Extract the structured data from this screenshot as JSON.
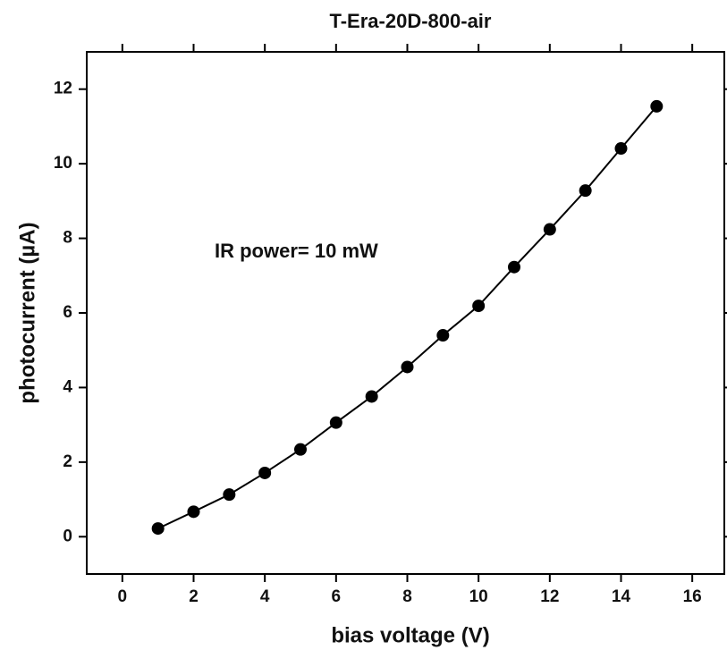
{
  "chart_data": {
    "type": "line",
    "title": "T-Era-20D-800-air",
    "xlabel": "bias voltage (V)",
    "ylabel": "photocurrent (µA)",
    "annotation": "IR power= 10 mW",
    "x": [
      1,
      2,
      3,
      4,
      5,
      6,
      7,
      8,
      9,
      10,
      11,
      12,
      13,
      14,
      15
    ],
    "series": [
      {
        "name": "photocurrent",
        "color": "#000000",
        "values": [
          0.22,
          0.67,
          1.13,
          1.71,
          2.34,
          3.06,
          3.76,
          4.55,
          5.4,
          6.19,
          7.23,
          8.24,
          9.28,
          10.41,
          11.54
        ]
      }
    ],
    "xlim": [
      -1,
      16.9
    ],
    "ylim": [
      -1,
      13
    ],
    "xticks": [
      0,
      2,
      4,
      6,
      8,
      10,
      12,
      14,
      16
    ],
    "yticks": [
      0,
      2,
      4,
      6,
      8,
      10,
      12
    ]
  }
}
